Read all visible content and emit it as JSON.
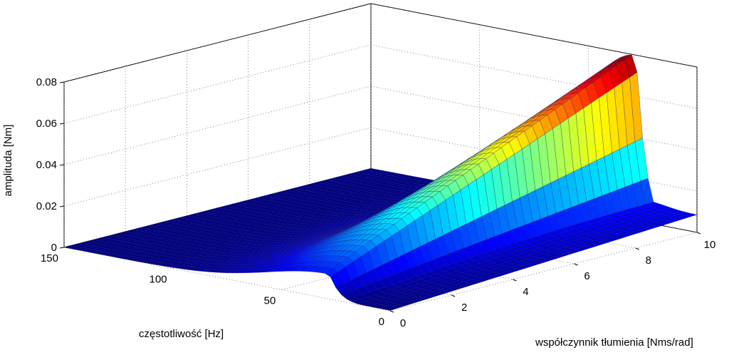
{
  "chart_data": {
    "type": "surface",
    "title": "",
    "xlabel": "współczynnik tłumienia [Nms/rad]",
    "ylabel": "częstotliwość [Hz]",
    "zlabel": "amplituda [Nm]",
    "xlim": [
      0,
      10
    ],
    "ylim": [
      0,
      150
    ],
    "zlim": [
      0,
      0.08
    ],
    "x_ticks": [
      "0",
      "2",
      "4",
      "6",
      "8",
      "10"
    ],
    "y_ticks": [
      "0",
      "50",
      "100",
      "150"
    ],
    "z_ticks": [
      "0",
      "0.02",
      "0.04",
      "0.06",
      "0.08"
    ],
    "grid": true,
    "colormap": "jet",
    "resonance_frequency_hz": 28,
    "peak_amplitude": 0.078,
    "max_amplitude_at_max_damping": 0.08,
    "valley_amplitude": 0.015
  }
}
